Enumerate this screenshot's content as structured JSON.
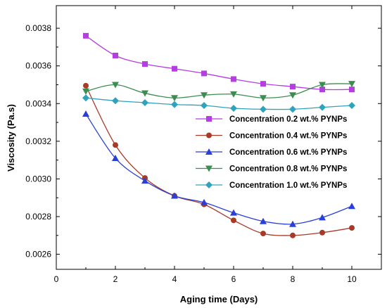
{
  "chart_data": {
    "type": "line",
    "xlabel": "Aging time (Days)",
    "ylabel": "Viscosity (Pa.s)",
    "xlim": [
      0,
      11
    ],
    "ylim": [
      0.00252,
      0.00392
    ],
    "xticks": [
      0,
      2,
      4,
      6,
      8,
      10
    ],
    "xtick_labels": [
      "0",
      "2",
      "4",
      "6",
      "8",
      "10"
    ],
    "yticks": [
      0.0026,
      0.0028,
      0.003,
      0.0032,
      0.0034,
      0.0036,
      0.0038
    ],
    "ytick_labels": [
      "0.0026",
      "0.0028",
      "0.0030",
      "0.0032",
      "0.0034",
      "0.0036",
      "0.0038"
    ],
    "legend_position": "center-right",
    "x": [
      1,
      2,
      3,
      4,
      5,
      6,
      7,
      8,
      9,
      10
    ],
    "series": [
      {
        "name": "Concentration 0.2 wt.% PYNPs",
        "color": "#b43ee0",
        "marker": "square",
        "values": [
          0.00376,
          0.003655,
          0.00361,
          0.003585,
          0.00356,
          0.00353,
          0.003505,
          0.00349,
          0.003475,
          0.003475
        ]
      },
      {
        "name": "Concentration 0.4 wt.% PYNPs",
        "color": "#a83a28",
        "marker": "circle",
        "values": [
          0.003495,
          0.00318,
          0.003005,
          0.00291,
          0.002865,
          0.00278,
          0.00271,
          0.0027,
          0.002715,
          0.00274
        ]
      },
      {
        "name": "Concentration 0.6 wt.% PYNPs",
        "color": "#2a3fd8",
        "marker": "triangle-up",
        "values": [
          0.003345,
          0.00311,
          0.00299,
          0.00291,
          0.002875,
          0.00282,
          0.002775,
          0.00276,
          0.002795,
          0.002855
        ]
      },
      {
        "name": "Concentration 0.8 wt.% PYNPs",
        "color": "#3c8e50",
        "marker": "triangle-down",
        "values": [
          0.003465,
          0.0035,
          0.003455,
          0.00343,
          0.003445,
          0.00345,
          0.00343,
          0.003445,
          0.0035,
          0.003505
        ]
      },
      {
        "name": "Concentration 1.0 wt.% PYNPs",
        "color": "#2fa3bd",
        "marker": "diamond",
        "values": [
          0.00343,
          0.003415,
          0.003405,
          0.003395,
          0.00339,
          0.003375,
          0.00337,
          0.00337,
          0.00338,
          0.00339
        ]
      }
    ]
  }
}
